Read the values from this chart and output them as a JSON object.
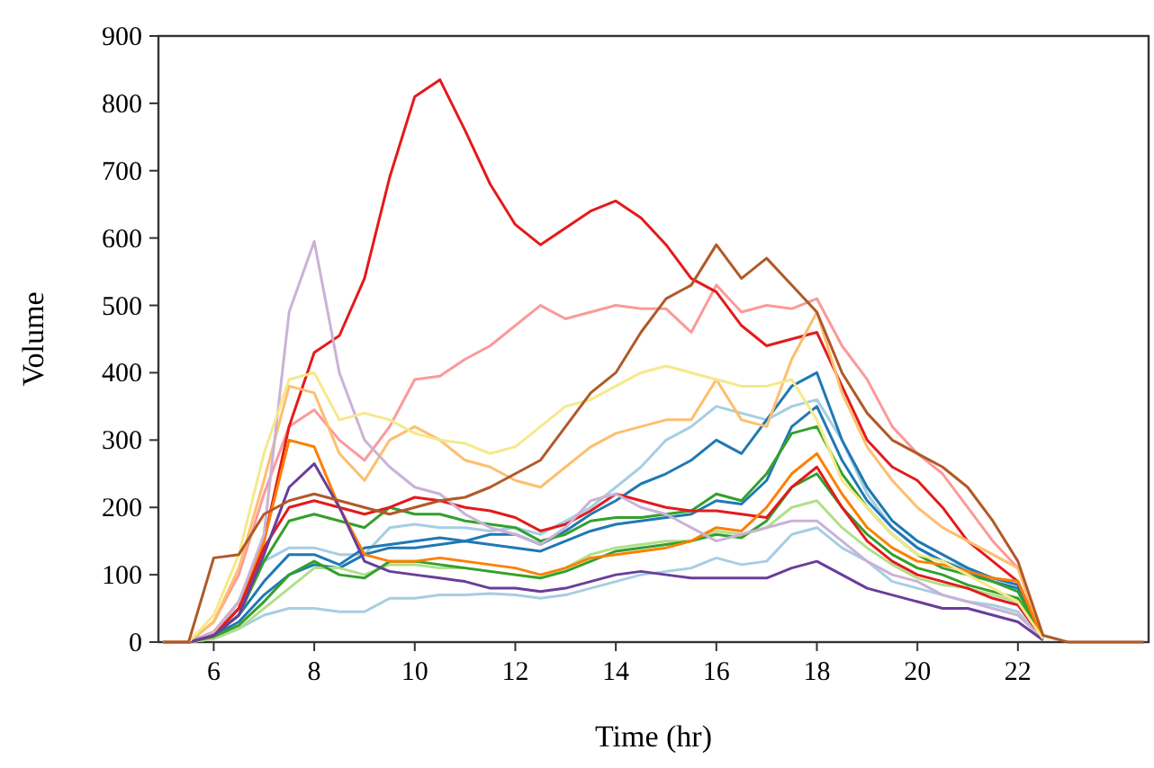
{
  "chart_data": {
    "type": "line",
    "xlabel": "Time (hr)",
    "ylabel": "Volume",
    "xlim": [
      4.9,
      24.6
    ],
    "ylim": [
      0,
      900
    ],
    "xticks": [
      6,
      8,
      10,
      12,
      14,
      16,
      18,
      20,
      22
    ],
    "yticks": [
      0,
      100,
      200,
      300,
      400,
      500,
      600,
      700,
      800,
      900
    ],
    "grid": false,
    "marker": "none",
    "line_style": "solid",
    "x": [
      5,
      5.5,
      6,
      6.5,
      7,
      7.5,
      8,
      8.5,
      9,
      9.5,
      10,
      10.5,
      11,
      11.5,
      12,
      12.5,
      13,
      13.5,
      14,
      14.5,
      15,
      15.5,
      16,
      16.5,
      17,
      17.5,
      18,
      18.5,
      19,
      19.5,
      20,
      20.5,
      21,
      21.5,
      22,
      22.5,
      23,
      24.5
    ],
    "series": [
      {
        "color": "#a6cee3",
        "values": [
          0,
          0,
          5,
          20,
          40,
          50,
          50,
          45,
          45,
          65,
          65,
          70,
          70,
          72,
          70,
          65,
          70,
          80,
          90,
          100,
          105,
          110,
          125,
          115,
          120,
          160,
          170,
          140,
          120,
          90,
          80,
          70,
          60,
          55,
          45,
          5,
          null,
          null
        ]
      },
      {
        "color": "#a6cee3",
        "values": [
          0,
          0,
          10,
          60,
          120,
          140,
          140,
          130,
          130,
          170,
          175,
          170,
          170,
          165,
          170,
          160,
          180,
          200,
          230,
          260,
          300,
          320,
          350,
          340,
          330,
          350,
          360,
          300,
          220,
          170,
          140,
          120,
          110,
          95,
          85,
          5,
          null,
          null
        ]
      },
      {
        "color": "#1f78b4",
        "values": [
          0,
          0,
          10,
          40,
          90,
          130,
          130,
          115,
          140,
          145,
          150,
          155,
          150,
          160,
          160,
          145,
          165,
          190,
          210,
          235,
          250,
          270,
          300,
          280,
          330,
          380,
          400,
          300,
          230,
          180,
          150,
          130,
          110,
          95,
          85,
          5,
          null,
          null
        ]
      },
      {
        "color": "#1f78b4",
        "values": [
          0,
          0,
          10,
          30,
          70,
          100,
          115,
          110,
          130,
          140,
          140,
          145,
          150,
          145,
          140,
          135,
          150,
          165,
          175,
          180,
          185,
          190,
          210,
          205,
          240,
          320,
          350,
          270,
          210,
          170,
          140,
          120,
          105,
          90,
          80,
          5,
          null,
          null
        ]
      },
      {
        "color": "#b2df8a",
        "values": [
          0,
          0,
          5,
          20,
          50,
          80,
          110,
          110,
          100,
          115,
          115,
          110,
          110,
          105,
          100,
          95,
          110,
          130,
          140,
          145,
          150,
          150,
          165,
          160,
          170,
          200,
          210,
          170,
          140,
          115,
          95,
          85,
          80,
          70,
          60,
          5,
          null,
          null
        ]
      },
      {
        "color": "#33a02c",
        "values": [
          0,
          0,
          10,
          40,
          120,
          180,
          190,
          180,
          170,
          200,
          190,
          190,
          180,
          175,
          170,
          150,
          160,
          180,
          185,
          185,
          190,
          195,
          220,
          210,
          250,
          310,
          320,
          250,
          200,
          160,
          130,
          110,
          100,
          90,
          75,
          5,
          null,
          null
        ]
      },
      {
        "color": "#33a02c",
        "values": [
          0,
          0,
          8,
          25,
          60,
          100,
          120,
          100,
          95,
          120,
          120,
          115,
          110,
          105,
          100,
          95,
          105,
          120,
          135,
          140,
          145,
          150,
          160,
          155,
          180,
          230,
          250,
          200,
          160,
          130,
          110,
          100,
          85,
          75,
          65,
          5,
          null,
          null
        ]
      },
      {
        "color": "#fb9a99",
        "values": [
          0,
          0,
          30,
          100,
          220,
          320,
          345,
          300,
          270,
          320,
          390,
          395,
          420,
          440,
          470,
          500,
          480,
          490,
          500,
          495,
          495,
          460,
          530,
          490,
          500,
          495,
          510,
          440,
          390,
          320,
          280,
          250,
          200,
          150,
          110,
          5,
          null,
          null
        ]
      },
      {
        "color": "#e31a1c",
        "values": [
          0,
          0,
          10,
          50,
          150,
          320,
          430,
          455,
          540,
          690,
          810,
          835,
          760,
          680,
          620,
          590,
          615,
          640,
          655,
          630,
          590,
          540,
          520,
          470,
          440,
          450,
          460,
          380,
          300,
          260,
          240,
          200,
          150,
          120,
          90,
          5,
          null,
          null
        ]
      },
      {
        "color": "#e31a1c",
        "values": [
          0,
          0,
          10,
          50,
          140,
          200,
          210,
          200,
          190,
          200,
          215,
          210,
          200,
          195,
          185,
          165,
          175,
          195,
          220,
          210,
          200,
          195,
          195,
          190,
          185,
          230,
          260,
          200,
          150,
          120,
          100,
          90,
          80,
          65,
          55,
          5,
          null,
          null
        ]
      },
      {
        "color": "#fdbf6f",
        "values": [
          0,
          0,
          30,
          110,
          240,
          380,
          370,
          280,
          240,
          300,
          320,
          300,
          270,
          260,
          240,
          230,
          260,
          290,
          310,
          320,
          330,
          330,
          390,
          330,
          320,
          420,
          490,
          370,
          290,
          240,
          200,
          170,
          150,
          130,
          110,
          5,
          null,
          null
        ]
      },
      {
        "color": "#ff7f00",
        "values": [
          0,
          0,
          15,
          60,
          150,
          300,
          290,
          200,
          130,
          120,
          120,
          125,
          120,
          115,
          110,
          100,
          110,
          125,
          130,
          135,
          140,
          150,
          170,
          165,
          200,
          250,
          280,
          220,
          170,
          140,
          120,
          115,
          105,
          95,
          90,
          5,
          null,
          null
        ]
      },
      {
        "color": "#cab2d6",
        "values": [
          0,
          0,
          15,
          60,
          160,
          490,
          595,
          400,
          300,
          260,
          230,
          220,
          190,
          170,
          160,
          145,
          170,
          210,
          220,
          200,
          190,
          170,
          150,
          160,
          170,
          180,
          180,
          150,
          120,
          100,
          90,
          70,
          60,
          50,
          40,
          5,
          null,
          null
        ]
      },
      {
        "color": "#6a3d9a",
        "values": [
          0,
          0,
          10,
          40,
          130,
          230,
          265,
          200,
          120,
          105,
          100,
          95,
          90,
          80,
          80,
          75,
          80,
          90,
          100,
          105,
          100,
          95,
          95,
          95,
          95,
          110,
          120,
          100,
          80,
          70,
          60,
          50,
          50,
          40,
          30,
          3,
          null,
          null
        ]
      },
      {
        "color": "#f5e98a",
        "values": [
          0,
          0,
          40,
          130,
          280,
          390,
          400,
          330,
          340,
          330,
          310,
          300,
          295,
          280,
          290,
          320,
          350,
          360,
          380,
          400,
          410,
          400,
          390,
          380,
          380,
          390,
          330,
          240,
          200,
          160,
          130,
          120,
          100,
          80,
          60,
          5,
          null,
          null
        ]
      },
      {
        "color": "#b15928",
        "values": [
          0,
          0,
          125,
          130,
          190,
          210,
          220,
          210,
          200,
          190,
          200,
          210,
          215,
          230,
          250,
          270,
          320,
          370,
          400,
          460,
          510,
          530,
          590,
          540,
          570,
          530,
          490,
          400,
          340,
          300,
          280,
          260,
          230,
          180,
          120,
          10,
          0,
          0
        ]
      }
    ]
  }
}
